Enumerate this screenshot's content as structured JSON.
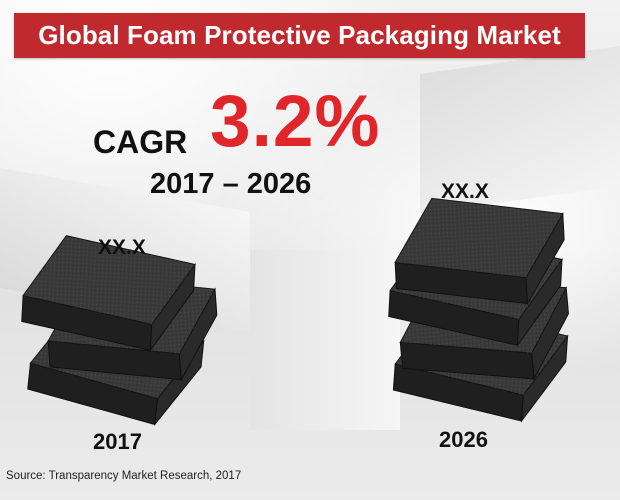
{
  "title": "Global Foam Protective Packaging Market",
  "cagr": {
    "label": "CAGR",
    "value": "3.2%",
    "period": "2017 – 2026"
  },
  "bars": [
    {
      "year": "2017",
      "value_label": "XX.X",
      "pad_count": 3
    },
    {
      "year": "2026",
      "value_label": "XX.X",
      "pad_count": 4
    }
  ],
  "source": "Source: Transparency Market Research, 2017",
  "colors": {
    "title_bg": "#c02a2e",
    "title_text": "#ffffff",
    "cagr_value": "#e0262b",
    "text": "#111111",
    "foam_top": "#3a3a3a",
    "foam_side": "#1f1f1f"
  }
}
